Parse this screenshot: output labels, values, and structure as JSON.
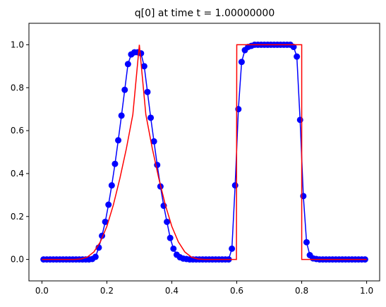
{
  "chart_data": {
    "type": "line",
    "title": "q[0] at time t =     1.00000000",
    "xlabel": "",
    "ylabel": "",
    "xlim": [
      -0.04,
      1.04
    ],
    "ylim": [
      -0.1,
      1.1
    ],
    "grid": false,
    "x_ticks": [
      0.0,
      0.2,
      0.4,
      0.6,
      0.8,
      1.0
    ],
    "y_ticks": [
      0.0,
      0.2,
      0.4,
      0.6,
      0.8,
      1.0
    ],
    "x_tick_labels": [
      "0.0",
      "0.2",
      "0.4",
      "0.6",
      "0.8",
      "1.0"
    ],
    "y_tick_labels": [
      "0.0",
      "0.2",
      "0.4",
      "0.6",
      "0.8",
      "1.0"
    ],
    "series": [
      {
        "style": "points-with-line",
        "color": "#0000ff",
        "x": [
          0.005,
          0.015,
          0.025,
          0.035,
          0.045,
          0.055,
          0.065,
          0.075,
          0.085,
          0.095,
          0.105,
          0.115,
          0.125,
          0.135,
          0.145,
          0.155,
          0.165,
          0.175,
          0.185,
          0.195,
          0.205,
          0.215,
          0.225,
          0.235,
          0.245,
          0.255,
          0.265,
          0.275,
          0.285,
          0.295,
          0.305,
          0.315,
          0.325,
          0.335,
          0.345,
          0.355,
          0.365,
          0.375,
          0.385,
          0.395,
          0.405,
          0.415,
          0.425,
          0.435,
          0.445,
          0.455,
          0.465,
          0.475,
          0.485,
          0.495,
          0.505,
          0.515,
          0.525,
          0.535,
          0.545,
          0.555,
          0.565,
          0.575,
          0.585,
          0.595,
          0.605,
          0.615,
          0.625,
          0.635,
          0.645,
          0.655,
          0.665,
          0.675,
          0.685,
          0.695,
          0.705,
          0.715,
          0.725,
          0.735,
          0.745,
          0.755,
          0.765,
          0.775,
          0.785,
          0.795,
          0.805,
          0.815,
          0.825,
          0.835,
          0.845,
          0.855,
          0.865,
          0.875,
          0.885,
          0.895,
          0.905,
          0.915,
          0.925,
          0.935,
          0.945,
          0.955,
          0.965,
          0.975,
          0.985,
          0.995
        ],
        "y": [
          0,
          0,
          0,
          0,
          0,
          0,
          0,
          0,
          0,
          0,
          0,
          0,
          0,
          0,
          0,
          0.002,
          0.012,
          0.055,
          0.11,
          0.175,
          0.255,
          0.345,
          0.445,
          0.555,
          0.67,
          0.79,
          0.91,
          0.955,
          0.965,
          0.965,
          0.96,
          0.9,
          0.78,
          0.66,
          0.55,
          0.44,
          0.34,
          0.25,
          0.175,
          0.1,
          0.05,
          0.022,
          0.01,
          0.004,
          0.002,
          0,
          0,
          0,
          0,
          0,
          0,
          0,
          0,
          0,
          0,
          0,
          0,
          0,
          0.05,
          0.345,
          0.7,
          0.92,
          0.975,
          0.99,
          0.995,
          1.0,
          1.0,
          1.0,
          1.0,
          1.0,
          1.0,
          1.0,
          1.0,
          1.0,
          1.0,
          1.0,
          1.0,
          0.99,
          0.945,
          0.65,
          0.295,
          0.08,
          0.02,
          0.005,
          0.002,
          0,
          0,
          0,
          0,
          0,
          0,
          0,
          0,
          0,
          0,
          0,
          0,
          0,
          0,
          0
        ]
      },
      {
        "style": "line",
        "color": "#ff0000",
        "x": [
          0.0,
          0.1,
          0.12,
          0.14,
          0.16,
          0.18,
          0.2,
          0.22,
          0.24,
          0.26,
          0.28,
          0.3,
          0.32,
          0.34,
          0.36,
          0.38,
          0.4,
          0.42,
          0.44,
          0.46,
          0.48,
          0.5,
          0.599,
          0.6,
          0.601,
          0.8,
          0.8,
          1.0
        ],
        "y": [
          0.0,
          0.0,
          0.002,
          0.011,
          0.035,
          0.082,
          0.154,
          0.254,
          0.377,
          0.516,
          0.675,
          1.0,
          0.675,
          0.516,
          0.377,
          0.254,
          0.154,
          0.082,
          0.035,
          0.011,
          0.002,
          0.0,
          0.0,
          1.0,
          1.0,
          1.0,
          0.0,
          0.0
        ]
      }
    ]
  }
}
